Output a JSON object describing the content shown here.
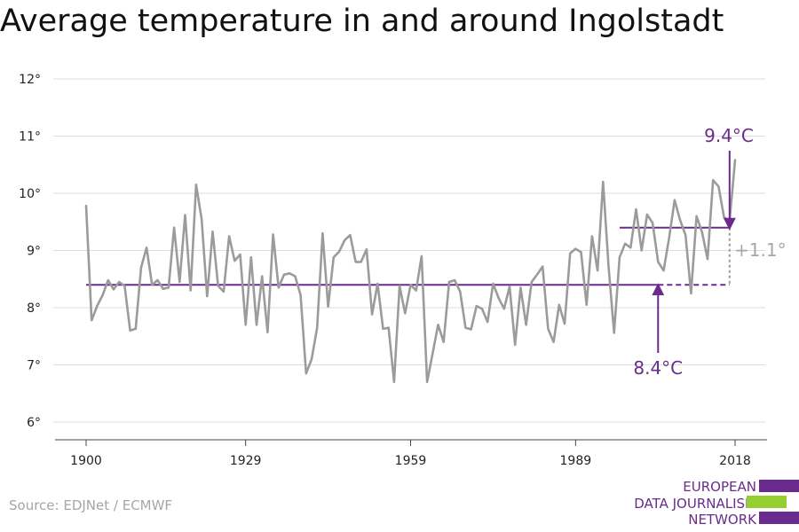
{
  "title": "Average temperature in and around Ingolstadt",
  "source": "Source: EDJNet / ECMWF",
  "logo": {
    "lines": [
      "EUROPEAN",
      "DATA JOURNALISM",
      "NETWORK"
    ]
  },
  "colors": {
    "series": "#9b9b9b",
    "accent": "#6a2b8e",
    "grid": "#dcdcdc",
    "logo_green": "#95cf2f"
  },
  "chart_data": {
    "type": "line",
    "x_ticks": [
      "1900",
      "1929",
      "1959",
      "1989",
      "2018"
    ],
    "y_ticks": [
      "6°",
      "7°",
      "8°",
      "9°",
      "10°",
      "11°",
      "12°"
    ],
    "ylim": [
      6,
      12
    ],
    "xlim": [
      1900,
      2018
    ],
    "grid": true,
    "series": [
      {
        "x": [
          1900,
          1901,
          1902,
          1903,
          1904,
          1905,
          1906,
          1907,
          1908,
          1909,
          1910,
          1911,
          1912,
          1913,
          1914,
          1915,
          1916,
          1917,
          1918,
          1919,
          1920,
          1921,
          1922,
          1923,
          1924,
          1925,
          1926,
          1927,
          1928,
          1929,
          1930,
          1931,
          1932,
          1933,
          1934,
          1935,
          1936,
          1937,
          1938,
          1939,
          1940,
          1941,
          1942,
          1943,
          1944,
          1945,
          1946,
          1947,
          1948,
          1949,
          1950,
          1951,
          1952,
          1953,
          1954,
          1955,
          1956,
          1957,
          1958,
          1959,
          1960,
          1961,
          1962,
          1963,
          1964,
          1965,
          1966,
          1967,
          1968,
          1969,
          1970,
          1971,
          1972,
          1973,
          1974,
          1975,
          1976,
          1977,
          1978,
          1979,
          1980,
          1981,
          1982,
          1983,
          1984,
          1985,
          1986,
          1987,
          1988,
          1989,
          1990,
          1991,
          1992,
          1993,
          1994,
          1995,
          1996,
          1997,
          1998,
          1999,
          2000,
          2001,
          2002,
          2003,
          2004,
          2005,
          2006,
          2007,
          2008,
          2009,
          2010,
          2011,
          2012,
          2013,
          2014,
          2015,
          2016,
          2017,
          2018
        ],
        "values": [
          9.78,
          7.78,
          8.03,
          8.22,
          8.48,
          8.32,
          8.45,
          8.38,
          7.6,
          7.63,
          8.7,
          9.05,
          8.4,
          8.48,
          8.33,
          8.35,
          9.4,
          8.45,
          9.62,
          8.3,
          10.15,
          9.55,
          8.2,
          9.33,
          8.38,
          8.28,
          9.25,
          8.82,
          8.93,
          7.7,
          8.88,
          7.7,
          8.55,
          7.57,
          9.28,
          8.35,
          8.58,
          8.6,
          8.55,
          8.22,
          6.85,
          7.1,
          7.65,
          9.3,
          8.02,
          8.88,
          8.98,
          9.18,
          9.27,
          8.8,
          8.8,
          9.02,
          7.88,
          8.42,
          7.63,
          7.65,
          6.7,
          8.38,
          7.9,
          8.4,
          8.3,
          8.9,
          6.7,
          7.2,
          7.7,
          7.4,
          8.45,
          8.48,
          8.28,
          7.65,
          7.62,
          8.03,
          7.98,
          7.75,
          8.42,
          8.17,
          7.98,
          8.37,
          7.35,
          8.35,
          7.7,
          8.45,
          8.58,
          8.72,
          7.63,
          7.4,
          8.05,
          7.72,
          8.95,
          9.03,
          8.97,
          8.05,
          9.25,
          8.65,
          10.2,
          8.72,
          7.56,
          8.88,
          9.12,
          9.05,
          9.72,
          9.0,
          9.63,
          9.48,
          8.8,
          8.65,
          9.22,
          9.88,
          9.53,
          9.27,
          8.25,
          9.6,
          9.32,
          8.85,
          10.23,
          10.12,
          9.58,
          9.52,
          10.58
        ],
        "color": "#9b9b9b"
      }
    ],
    "annotations": {
      "baseline": {
        "value": 8.4,
        "label": "8.4°C"
      },
      "recent": {
        "value": 9.4,
        "label": "9.4°C"
      },
      "difference": {
        "label": "+1.1°"
      }
    }
  }
}
